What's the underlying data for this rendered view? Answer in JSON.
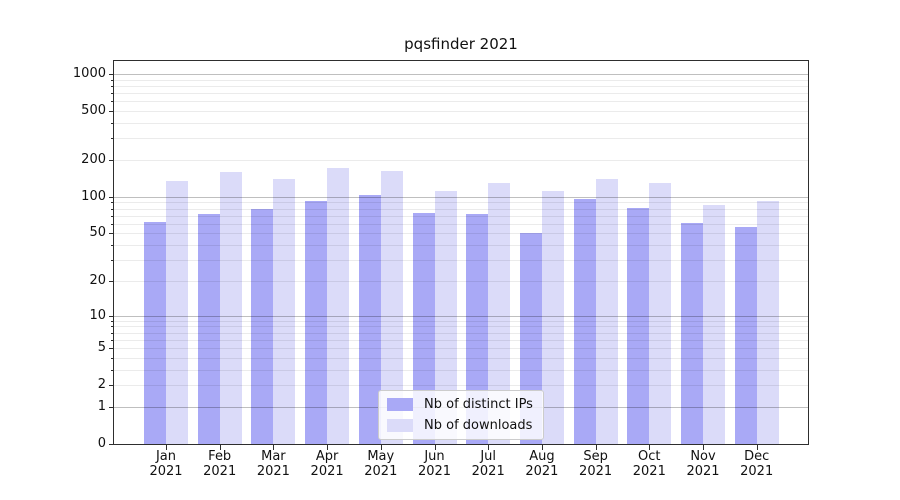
{
  "chart_data": {
    "type": "bar",
    "title": "pqsfinder 2021",
    "xlabel": "",
    "ylabel": "",
    "yscale": "log1p",
    "ylim": [
      0,
      1275
    ],
    "grid": true,
    "legend_position": "lower center",
    "year_label": "2021",
    "months": [
      "Jan",
      "Feb",
      "Mar",
      "Apr",
      "May",
      "Jun",
      "Jul",
      "Aug",
      "Sep",
      "Oct",
      "Nov",
      "Dec"
    ],
    "yticks": [
      1000,
      500,
      200,
      100,
      50,
      20,
      10,
      5,
      2,
      1,
      0
    ],
    "series": [
      {
        "name": "Nb of distinct IPs",
        "color": "#a9a9f6",
        "values": [
          62,
          73,
          80,
          93,
          104,
          74,
          72,
          50,
          96,
          81,
          61,
          56
        ]
      },
      {
        "name": "Nb of downloads",
        "color": "#dbdbf9",
        "values": [
          136,
          161,
          140,
          171,
          164,
          112,
          130,
          112,
          139,
          130,
          86,
          93
        ]
      }
    ]
  },
  "colors": {
    "background": "#ffffff",
    "axis": "#2e2e2e",
    "text": "#111111",
    "grid_major": "rgba(0,0,0,0.25)",
    "grid_minor": "rgba(0,0,0,0.08)"
  }
}
